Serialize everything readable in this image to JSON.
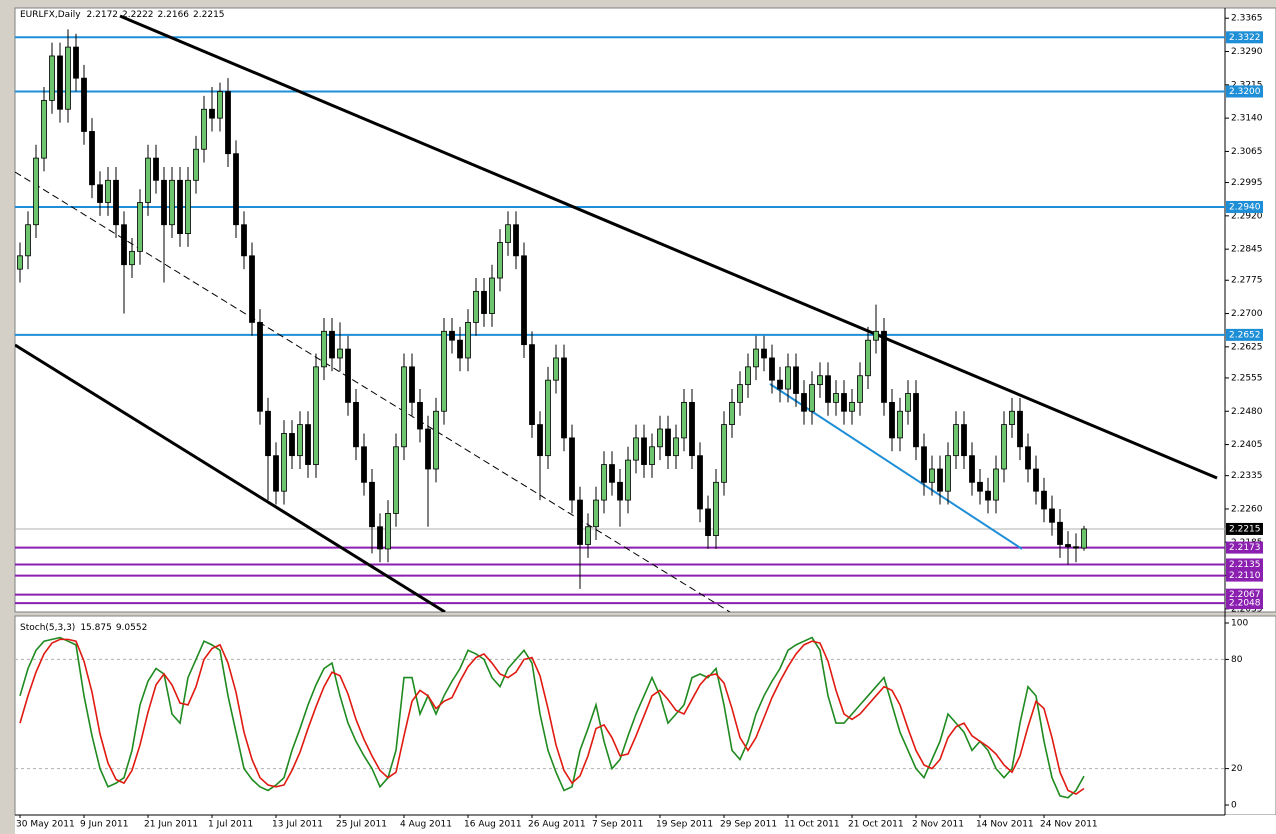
{
  "chart_data": [
    {
      "type": "candlestick",
      "title": "EURLFX,Daily",
      "categories": [
        "30 May 2011",
        null,
        null,
        null,
        null,
        null,
        null,
        null,
        "9 Jun 2011",
        null,
        null,
        null,
        null,
        null,
        null,
        null,
        "21 Jun 2011",
        null,
        null,
        null,
        null,
        null,
        null,
        null,
        "1 Jul 2011",
        null,
        null,
        null,
        null,
        null,
        null,
        null,
        "13 Jul 2011",
        null,
        null,
        null,
        null,
        null,
        null,
        null,
        "25 Jul 2011",
        null,
        null,
        null,
        null,
        null,
        null,
        null,
        "4 Aug 2011",
        null,
        null,
        null,
        null,
        null,
        null,
        null,
        "16 Aug 2011",
        null,
        null,
        null,
        null,
        null,
        null,
        null,
        "26 Aug 2011",
        null,
        null,
        null,
        null,
        null,
        null,
        null,
        "7 Sep 2011",
        null,
        null,
        null,
        null,
        null,
        null,
        null,
        "19 Sep 2011",
        null,
        null,
        null,
        null,
        null,
        null,
        null,
        "29 Sep 2011",
        null,
        null,
        null,
        null,
        null,
        null,
        null,
        "11 Oct 2011",
        null,
        null,
        null,
        null,
        null,
        null,
        null,
        "21 Oct 2011",
        null,
        null,
        null,
        null,
        null,
        null,
        null,
        "2 Nov 2011",
        null,
        null,
        null,
        null,
        null,
        null,
        null,
        "14 Nov 2011",
        null,
        null,
        null,
        null,
        null,
        null,
        null,
        "24 Nov 2011",
        null,
        null,
        null,
        null,
        null
      ],
      "open": [
        2.28,
        2.283,
        2.29,
        2.305,
        2.318,
        2.328,
        2.316,
        2.33,
        2.323,
        2.311,
        2.299,
        2.295,
        2.3,
        2.29,
        2.281,
        2.284,
        2.295,
        2.305,
        2.3,
        2.29,
        2.3,
        2.288,
        2.3,
        2.307,
        2.316,
        2.314,
        2.32,
        2.306,
        2.29,
        2.283,
        2.268,
        2.248,
        2.238,
        2.23,
        2.243,
        2.238,
        2.245,
        2.236,
        2.258,
        2.266,
        2.26,
        2.262,
        2.25,
        2.24,
        2.232,
        2.222,
        2.217,
        2.225,
        2.24,
        2.258,
        2.25,
        2.244,
        2.235,
        2.248,
        2.266,
        2.264,
        2.26,
        2.268,
        2.275,
        2.27,
        2.278,
        2.286,
        2.29,
        2.283,
        2.263,
        2.245,
        2.238,
        2.255,
        2.26,
        2.242,
        2.228,
        2.218,
        2.222,
        2.228,
        2.236,
        2.232,
        2.228,
        2.237,
        2.242,
        2.236,
        2.24,
        2.244,
        2.238,
        2.242,
        2.25,
        2.238,
        2.226,
        2.22,
        2.232,
        2.245,
        2.25,
        2.254,
        2.258,
        2.262,
        2.26,
        2.255,
        2.253,
        2.258,
        2.252,
        2.248,
        2.254,
        2.256,
        2.25,
        2.252,
        2.248,
        2.25,
        2.256,
        2.264,
        2.266,
        2.25,
        2.242,
        2.248,
        2.252,
        2.24,
        2.232,
        2.235,
        2.23,
        2.238,
        2.245,
        2.238,
        2.232,
        2.23,
        2.228,
        2.235,
        2.245,
        2.248,
        2.24,
        2.235,
        2.23,
        2.226,
        2.223,
        2.218,
        2.2175,
        2.2172
      ],
      "high": [
        2.286,
        2.293,
        2.308,
        2.321,
        2.331,
        2.331,
        2.334,
        2.333,
        2.326,
        2.314,
        2.302,
        2.303,
        2.303,
        2.293,
        2.287,
        2.298,
        2.308,
        2.308,
        2.303,
        2.303,
        2.303,
        2.303,
        2.31,
        2.319,
        2.321,
        2.322,
        2.323,
        2.309,
        2.293,
        2.286,
        2.271,
        2.251,
        2.241,
        2.246,
        2.246,
        2.248,
        2.248,
        2.261,
        2.269,
        2.269,
        2.268,
        2.265,
        2.253,
        2.243,
        2.235,
        2.225,
        2.228,
        2.243,
        2.261,
        2.261,
        2.253,
        2.247,
        2.251,
        2.269,
        2.269,
        2.267,
        2.271,
        2.278,
        2.278,
        2.281,
        2.289,
        2.293,
        2.293,
        2.286,
        2.266,
        2.248,
        2.258,
        2.263,
        2.263,
        2.245,
        2.231,
        2.225,
        2.231,
        2.239,
        2.239,
        2.235,
        2.24,
        2.245,
        2.245,
        2.243,
        2.247,
        2.247,
        2.245,
        2.253,
        2.253,
        2.241,
        2.229,
        2.235,
        2.248,
        2.253,
        2.257,
        2.261,
        2.265,
        2.265,
        2.263,
        2.258,
        2.261,
        2.261,
        2.255,
        2.257,
        2.259,
        2.259,
        2.255,
        2.255,
        2.253,
        2.259,
        2.267,
        2.272,
        2.269,
        2.253,
        2.251,
        2.255,
        2.255,
        2.243,
        2.238,
        2.238,
        2.241,
        2.248,
        2.248,
        2.241,
        2.235,
        2.233,
        2.238,
        2.248,
        2.251,
        2.251,
        2.243,
        2.238,
        2.233,
        2.229,
        2.226,
        2.221,
        2.2205,
        2.2222
      ],
      "low": [
        2.277,
        2.28,
        2.287,
        2.302,
        2.315,
        2.313,
        2.313,
        2.32,
        2.308,
        2.296,
        2.292,
        2.292,
        2.287,
        2.27,
        2.278,
        2.281,
        2.292,
        2.297,
        2.277,
        2.287,
        2.285,
        2.285,
        2.297,
        2.304,
        2.311,
        2.311,
        2.303,
        2.287,
        2.28,
        2.265,
        2.245,
        2.228,
        2.227,
        2.227,
        2.235,
        2.235,
        2.233,
        2.233,
        2.255,
        2.257,
        2.257,
        2.247,
        2.237,
        2.229,
        2.216,
        2.214,
        2.214,
        2.222,
        2.237,
        2.247,
        2.241,
        2.222,
        2.232,
        2.245,
        2.261,
        2.257,
        2.257,
        2.265,
        2.267,
        2.267,
        2.275,
        2.283,
        2.28,
        2.26,
        2.242,
        2.228,
        2.235,
        2.252,
        2.239,
        2.225,
        2.208,
        2.215,
        2.219,
        2.225,
        2.229,
        2.222,
        2.225,
        2.234,
        2.233,
        2.233,
        2.237,
        2.235,
        2.235,
        2.239,
        2.235,
        2.223,
        2.217,
        2.217,
        2.229,
        2.242,
        2.247,
        2.251,
        2.255,
        2.257,
        2.252,
        2.25,
        2.25,
        2.249,
        2.245,
        2.245,
        2.251,
        2.247,
        2.247,
        2.245,
        2.245,
        2.247,
        2.253,
        2.261,
        2.247,
        2.239,
        2.239,
        2.245,
        2.237,
        2.229,
        2.229,
        2.227,
        2.227,
        2.235,
        2.235,
        2.229,
        2.227,
        2.225,
        2.225,
        2.232,
        2.242,
        2.237,
        2.232,
        2.227,
        2.223,
        2.22,
        2.215,
        2.2135,
        2.214,
        2.2166
      ],
      "close": [
        2.283,
        2.29,
        2.305,
        2.318,
        2.328,
        2.316,
        2.33,
        2.323,
        2.311,
        2.299,
        2.295,
        2.3,
        2.29,
        2.281,
        2.284,
        2.295,
        2.305,
        2.3,
        2.29,
        2.3,
        2.288,
        2.3,
        2.307,
        2.316,
        2.314,
        2.32,
        2.306,
        2.29,
        2.283,
        2.268,
        2.248,
        2.238,
        2.23,
        2.243,
        2.238,
        2.245,
        2.236,
        2.258,
        2.266,
        2.26,
        2.262,
        2.25,
        2.24,
        2.232,
        2.222,
        2.217,
        2.225,
        2.24,
        2.258,
        2.25,
        2.244,
        2.235,
        2.248,
        2.266,
        2.264,
        2.26,
        2.268,
        2.275,
        2.27,
        2.278,
        2.286,
        2.29,
        2.283,
        2.263,
        2.245,
        2.238,
        2.255,
        2.26,
        2.242,
        2.228,
        2.218,
        2.222,
        2.228,
        2.236,
        2.232,
        2.228,
        2.237,
        2.242,
        2.236,
        2.24,
        2.244,
        2.238,
        2.242,
        2.25,
        2.238,
        2.226,
        2.22,
        2.232,
        2.245,
        2.25,
        2.254,
        2.258,
        2.262,
        2.26,
        2.255,
        2.253,
        2.258,
        2.252,
        2.248,
        2.254,
        2.256,
        2.25,
        2.252,
        2.248,
        2.25,
        2.256,
        2.264,
        2.266,
        2.25,
        2.242,
        2.248,
        2.252,
        2.24,
        2.232,
        2.235,
        2.23,
        2.238,
        2.245,
        2.238,
        2.232,
        2.23,
        2.228,
        2.235,
        2.245,
        2.248,
        2.24,
        2.235,
        2.23,
        2.226,
        2.223,
        2.218,
        2.2175,
        2.2172,
        2.2215
      ],
      "up_color": "#6cc46c",
      "down_color": "#000000",
      "ylim": [
        2.2028,
        2.3388
      ],
      "yticks": [
        2.3365,
        {
          "value": 2.329,
          "label": "2.3290"
        },
        2.3215,
        {
          "value": 2.314,
          "label": "2.3140"
        },
        2.3065,
        2.2995,
        {
          "value": 2.292,
          "label": "2.2920"
        },
        2.2845,
        2.2775,
        {
          "value": 2.27,
          "label": "2.2700"
        },
        2.2625,
        2.2555,
        {
          "value": 2.248,
          "label": "2.2480"
        },
        2.2405,
        2.2335,
        {
          "value": 2.226,
          "label": "2.2260"
        },
        2.2185,
        {
          "value": 2.211,
          "label": "2.2110"
        },
        2.2035
      ],
      "levels": [
        {
          "value": 2.3322,
          "color": "#1e8fd6"
        },
        {
          "value": 2.32,
          "label": "2.3200",
          "color": "#1e8fd6"
        },
        {
          "value": 2.294,
          "label": "2.2940",
          "color": "#1e8fd6"
        },
        {
          "value": 2.2652,
          "color": "#1e8fd6"
        },
        {
          "value": 2.2173,
          "color": "#8a1fb0"
        },
        {
          "value": 2.2135,
          "color": "#8a1fb0"
        },
        {
          "value": 2.211,
          "label": "2.2110",
          "color": "#8a1fb0"
        },
        {
          "value": 2.2067,
          "color": "#8a1fb0"
        },
        {
          "value": 2.2048,
          "color": "#8a1fb0"
        }
      ]
    },
    {
      "type": "line",
      "title": "Stoch(5,3,3)",
      "series": [
        {
          "color": "#1f8a1f",
          "values": [
            60,
            75,
            85,
            90,
            91,
            92,
            90,
            88,
            60,
            38,
            20,
            10,
            12,
            15,
            30,
            55,
            68,
            75,
            72,
            50,
            45,
            70,
            80,
            90,
            88,
            85,
            60,
            40,
            20,
            14,
            10,
            8,
            11,
            15,
            30,
            42,
            55,
            66,
            75,
            78,
            60,
            45,
            35,
            27,
            20,
            10,
            15,
            30,
            70,
            70,
            50,
            60,
            50,
            60,
            68,
            75,
            85,
            83,
            80,
            70,
            65,
            75,
            80,
            85,
            78,
            50,
            30,
            18,
            8,
            10,
            30,
            42,
            55,
            35,
            20,
            25,
            38,
            50,
            60,
            70,
            60,
            45,
            50,
            55,
            70,
            72,
            70,
            75,
            55,
            30,
            25,
            35,
            50,
            60,
            68,
            75,
            85,
            88,
            90,
            92,
            85,
            60,
            45,
            45,
            50,
            55,
            60,
            65,
            70,
            55,
            40,
            30,
            20,
            15,
            25,
            35,
            50,
            45,
            40,
            30,
            35,
            30,
            20,
            15,
            20,
            45,
            65,
            60,
            35,
            15,
            5,
            4,
            8,
            15.875
          ]
        },
        {
          "color": "#e01a10",
          "values": [
            45,
            60,
            73,
            83,
            89,
            91,
            91,
            90,
            79,
            62,
            39,
            23,
            14,
            12,
            19,
            33,
            51,
            66,
            72,
            66,
            56,
            55,
            65,
            80,
            86,
            88,
            78,
            62,
            40,
            25,
            15,
            11,
            10,
            11,
            19,
            29,
            42,
            54,
            65,
            73,
            71,
            61,
            47,
            36,
            27,
            19,
            15,
            18,
            38,
            57,
            63,
            60,
            53,
            57,
            59,
            68,
            76,
            81,
            83,
            78,
            72,
            70,
            73,
            80,
            81,
            71,
            53,
            33,
            19,
            12,
            16,
            27,
            42,
            44,
            37,
            27,
            28,
            38,
            49,
            60,
            63,
            58,
            52,
            50,
            58,
            66,
            71,
            72,
            67,
            53,
            37,
            30,
            37,
            48,
            59,
            68,
            76,
            83,
            88,
            90,
            89,
            79,
            63,
            50,
            47,
            50,
            55,
            60,
            65,
            63,
            55,
            42,
            30,
            22,
            20,
            25,
            37,
            43,
            45,
            38,
            35,
            32,
            28,
            22,
            18,
            27,
            43,
            57,
            53,
            37,
            18,
            8,
            6,
            9.0552
          ]
        }
      ],
      "ylim": [
        0,
        100
      ],
      "yticks": [
        0,
        20,
        80,
        100
      ],
      "grid": true
    }
  ]
}
